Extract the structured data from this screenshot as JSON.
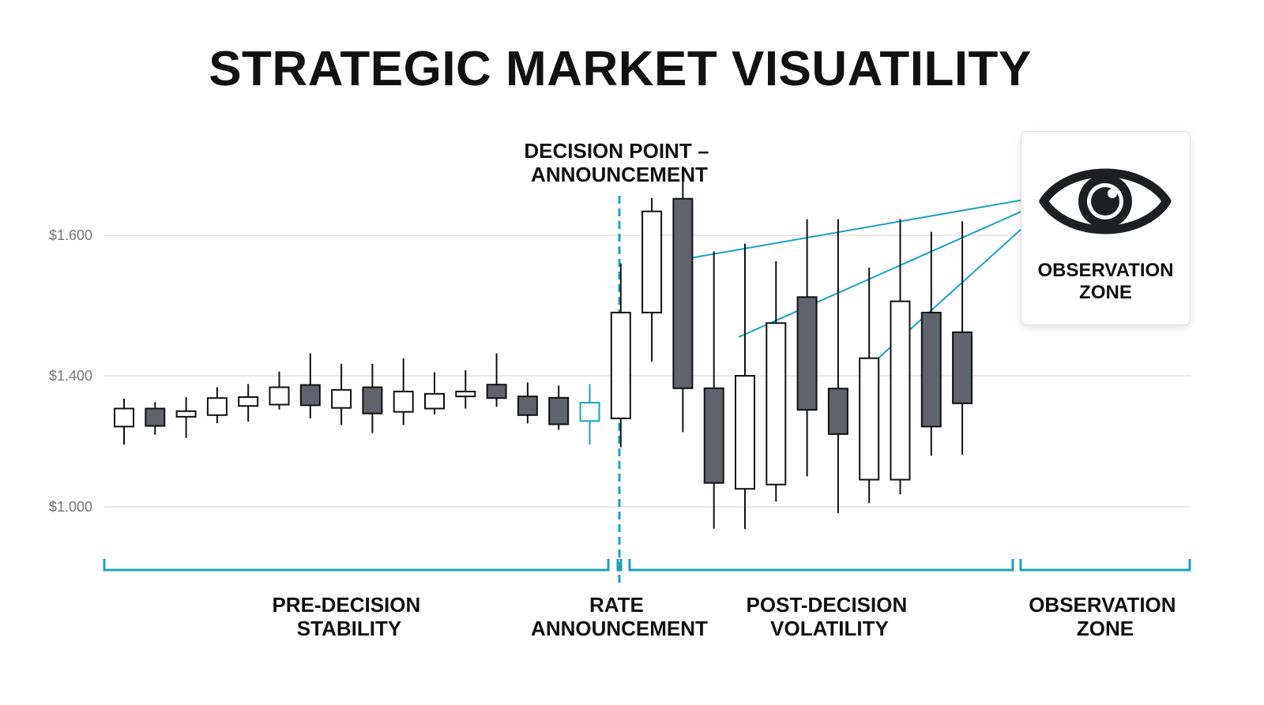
{
  "title": "STRATEGIC MARKET VISUATILITY",
  "decision_label": "DECISION POINT –\nANNOUNCEMENT",
  "observation_card": {
    "icon": "eye-icon",
    "label": "OBSERVATION\nZONE"
  },
  "colors": {
    "accent": "#1aa3bb",
    "bear": "#5f636b",
    "bull": "#ffffff",
    "stroke": "#111111",
    "grid": "#e2e2e2"
  },
  "chart_data": {
    "type": "candlestick",
    "title": "STRATEGIC MARKET VISUATILITY",
    "y_ticks": [
      "$1.600",
      "$1.400",
      "$1.000"
    ],
    "annotation": "DECISION POINT – ANNOUNCEMENT",
    "sections": [
      "PRE-DECISION\nSTABILITY",
      "RATE\nANNOUNCEMENT",
      "POST-DECISION\nVOLATILITY",
      "OBSERVATION\nZONE"
    ],
    "candles": [
      {
        "o": 1.245,
        "h": 1.33,
        "l": 1.19,
        "c": 1.3
      },
      {
        "o": 1.3,
        "h": 1.32,
        "l": 1.22,
        "c": 1.247
      },
      {
        "o": 1.275,
        "h": 1.335,
        "l": 1.21,
        "c": 1.292
      },
      {
        "o": 1.28,
        "h": 1.365,
        "l": 1.255,
        "c": 1.332
      },
      {
        "o": 1.308,
        "h": 1.375,
        "l": 1.26,
        "c": 1.335
      },
      {
        "o": 1.312,
        "h": 1.406,
        "l": 1.297,
        "c": 1.365
      },
      {
        "o": 1.372,
        "h": 1.432,
        "l": 1.27,
        "c": 1.31
      },
      {
        "o": 1.302,
        "h": 1.417,
        "l": 1.25,
        "c": 1.357
      },
      {
        "o": 1.365,
        "h": 1.417,
        "l": 1.225,
        "c": 1.285
      },
      {
        "o": 1.29,
        "h": 1.425,
        "l": 1.25,
        "c": 1.352
      },
      {
        "o": 1.3,
        "h": 1.405,
        "l": 1.282,
        "c": 1.345
      },
      {
        "o": 1.337,
        "h": 1.408,
        "l": 1.3,
        "c": 1.352
      },
      {
        "o": 1.373,
        "h": 1.432,
        "l": 1.305,
        "c": 1.332
      },
      {
        "o": 1.337,
        "h": 1.38,
        "l": 1.255,
        "c": 1.28
      },
      {
        "o": 1.333,
        "h": 1.37,
        "l": 1.235,
        "c": 1.252
      },
      {
        "o": 1.262,
        "h": 1.375,
        "l": 1.19,
        "c": 1.318
      },
      {
        "o": 1.27,
        "h": 1.56,
        "l": 1.182,
        "c": 1.49
      },
      {
        "o": 1.49,
        "h": 1.653,
        "l": 1.42,
        "c": 1.634
      },
      {
        "o": 1.652,
        "h": 1.698,
        "l": 1.228,
        "c": 1.362
      },
      {
        "o": 1.362,
        "h": 1.577,
        "l": 0.933,
        "c": 1.073
      },
      {
        "o": 1.055,
        "h": 1.588,
        "l": 0.932,
        "c": 1.4
      },
      {
        "o": 1.068,
        "h": 1.563,
        "l": 1.016,
        "c": 1.475
      },
      {
        "o": 1.512,
        "h": 1.623,
        "l": 1.093,
        "c": 1.296
      },
      {
        "o": 1.361,
        "h": 1.623,
        "l": 0.981,
        "c": 1.222
      },
      {
        "o": 1.083,
        "h": 1.554,
        "l": 1.011,
        "c": 1.425
      },
      {
        "o": 1.083,
        "h": 1.623,
        "l": 1.038,
        "c": 1.506
      },
      {
        "o": 1.49,
        "h": 1.605,
        "l": 1.156,
        "c": 1.245
      },
      {
        "o": 1.462,
        "h": 1.62,
        "l": 1.159,
        "c": 1.316
      }
    ],
    "highlight_index": 15
  }
}
